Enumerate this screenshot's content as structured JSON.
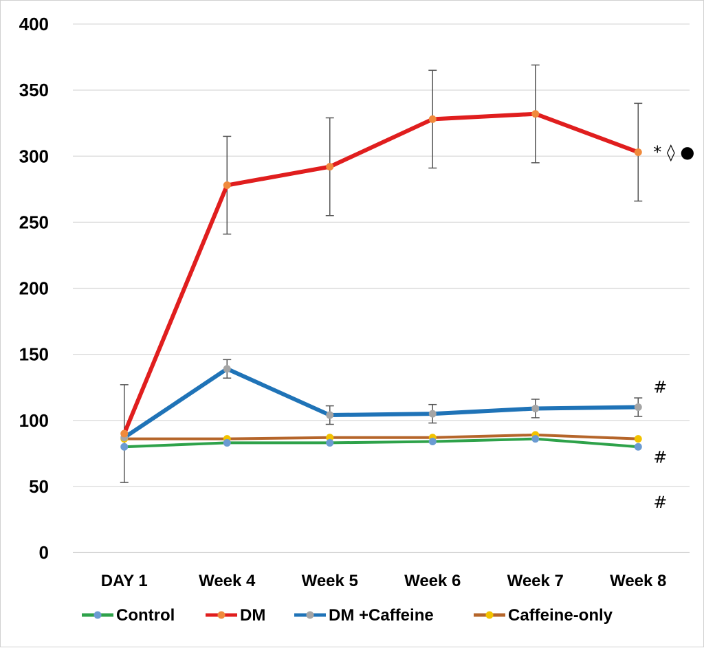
{
  "chart_data": {
    "type": "line",
    "categories": [
      "DAY 1",
      "Week 4",
      "Week 5",
      "Week 6",
      "Week 7",
      "Week 8"
    ],
    "ylim": [
      0,
      400
    ],
    "yticks": [
      "0",
      "50",
      "100",
      "150",
      "200",
      "250",
      "300",
      "350",
      "400"
    ],
    "grid": true,
    "legend": "bottom",
    "series": [
      {
        "name": "Control",
        "values": [
          80,
          83,
          83,
          84,
          86,
          80
        ],
        "line_color": "#2ea24a",
        "marker_color": "#6b9bd2"
      },
      {
        "name": "DM",
        "values": [
          90,
          278,
          292,
          328,
          332,
          303
        ],
        "errors": [
          37,
          37,
          37,
          37,
          37,
          37
        ],
        "line_color": "#e01e1e",
        "marker_color": "#f08a3c"
      },
      {
        "name": "DM +Caffeine",
        "values": [
          87,
          139,
          104,
          105,
          109,
          110
        ],
        "errors": [
          0,
          7,
          7,
          7,
          7,
          7
        ],
        "line_color": "#1f73b7",
        "marker_color": "#a5a5a5"
      },
      {
        "name": "Caffeine-only",
        "values": [
          86,
          86,
          87,
          87,
          89,
          86
        ],
        "line_color": "#b5652a",
        "marker_color": "#f2c200"
      }
    ],
    "annotations": [
      {
        "text": "* ◊ ●",
        "x": "Week 8",
        "y": 303
      },
      {
        "text": "#",
        "x": "Week 8",
        "y": 125
      },
      {
        "text": "#",
        "x": "Week 8",
        "y": 72
      },
      {
        "text": "#",
        "x": "Week 8",
        "y": 38
      }
    ]
  }
}
